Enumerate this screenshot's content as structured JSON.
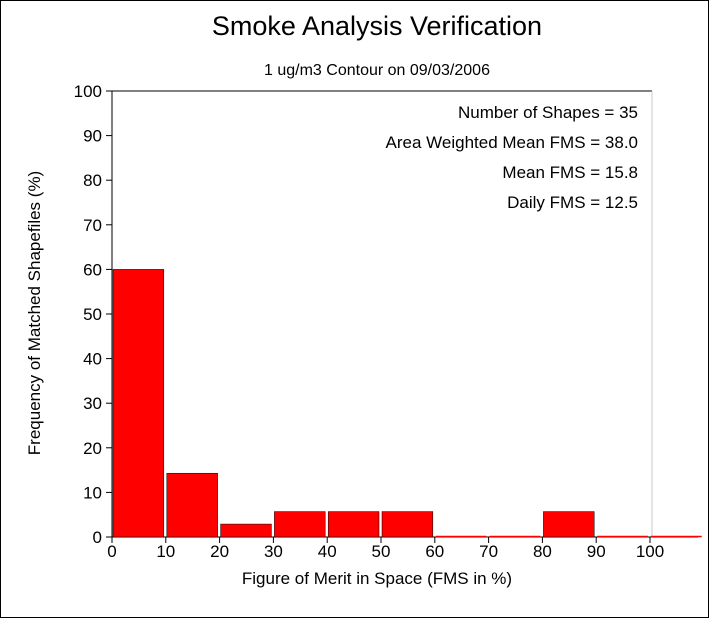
{
  "chart_data": {
    "type": "bar",
    "title": "Smoke Analysis Verification",
    "subtitle": "1 ug/m3 Contour on 09/03/2006",
    "xlabel": "Figure of Merit in Space (FMS in %)",
    "ylabel": "Frequency of Matched Shapefiles (%)",
    "xlim": [
      0,
      110
    ],
    "ylim": [
      0,
      100
    ],
    "xticks": [
      "0",
      "10",
      "20",
      "30",
      "40",
      "50",
      "60",
      "70",
      "80",
      "90",
      "100"
    ],
    "yticks": [
      "0",
      "10",
      "20",
      "30",
      "40",
      "50",
      "60",
      "70",
      "80",
      "90",
      "100"
    ],
    "bins": [
      {
        "x0": 0,
        "x1": 10,
        "value": 60
      },
      {
        "x0": 10,
        "x1": 20,
        "value": 14.3
      },
      {
        "x0": 20,
        "x1": 30,
        "value": 2.9
      },
      {
        "x0": 30,
        "x1": 40,
        "value": 5.7
      },
      {
        "x0": 40,
        "x1": 50,
        "value": 5.7
      },
      {
        "x0": 50,
        "x1": 60,
        "value": 5.7
      },
      {
        "x0": 60,
        "x1": 70,
        "value": 0
      },
      {
        "x0": 70,
        "x1": 80,
        "value": 0
      },
      {
        "x0": 80,
        "x1": 90,
        "value": 5.7
      },
      {
        "x0": 90,
        "x1": 100,
        "value": 0
      },
      {
        "x0": 100,
        "x1": 110,
        "value": 0
      }
    ],
    "bar_color": "#ff0000",
    "annotations": [
      "Number of Shapes = 35",
      "Area Weighted Mean FMS = 38.0",
      "Mean FMS = 15.8",
      "Daily FMS = 12.5"
    ],
    "grid": false
  }
}
